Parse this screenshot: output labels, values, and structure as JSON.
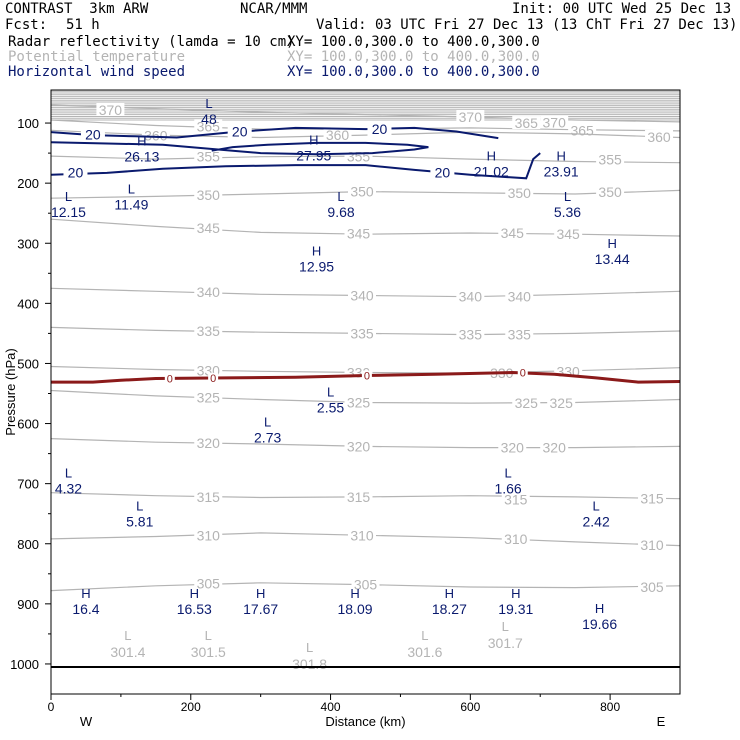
{
  "header": {
    "model": "CONTRAST  3km ARW",
    "center": "NCAR/MMM",
    "init": "Init: 00 UTC Wed 25 Dec 13",
    "fcst_label": "Fcst:",
    "fcst_value": "51 h",
    "valid": "Valid: 03 UTC Fri 27 Dec 13 (13 ChT Fri 27 Dec 13)"
  },
  "fields": [
    {
      "name": "Radar reflectivity (lamda = 10 cm)",
      "xy": "XY= 100.0,300.0 to 400.0,300.0",
      "color": "#000000"
    },
    {
      "name": "Potential temperature",
      "xy": "XY= 100.0,300.0 to 400.0,300.0",
      "color": "#b4b4b4"
    },
    {
      "name": "Horizontal wind speed",
      "xy": "XY= 100.0,300.0 to 400.0,300.0",
      "color": "#0a1a6e"
    }
  ],
  "chart_data": {
    "type": "cross-section",
    "xlabel": "Distance (km)",
    "ylabel": "Pressure (hPa)",
    "xlim": [
      0,
      900
    ],
    "ylim": [
      1050,
      45
    ],
    "x_ticks": [
      "0",
      "200",
      "400",
      "600",
      "800"
    ],
    "y_ticks": [
      "100",
      "200",
      "300",
      "400",
      "500",
      "600",
      "700",
      "800",
      "900",
      "1000"
    ],
    "left_end": "W",
    "right_end": "E",
    "colors": {
      "theta": "#b4b4b4",
      "wind": "#0a1a6e",
      "zero_line": "#8b1a1a",
      "axes": "#000000"
    },
    "theta_isentropes": [
      {
        "label": "370",
        "points": [
          [
            0,
            70
          ],
          [
            150,
            76
          ],
          [
            300,
            82
          ],
          [
            450,
            86
          ],
          [
            600,
            90
          ],
          [
            750,
            95
          ],
          [
            900,
            98
          ]
        ],
        "labels_at": [
          [
            85,
            78
          ],
          [
            600,
            90
          ],
          [
            720,
            99
          ]
        ]
      },
      {
        "label": "365",
        "points": [
          [
            0,
            95
          ],
          [
            150,
            104
          ],
          [
            300,
            110
          ],
          [
            450,
            110
          ],
          [
            600,
            108
          ],
          [
            750,
            111
          ],
          [
            900,
            113
          ]
        ],
        "labels_at": [
          [
            225,
            106
          ],
          [
            680,
            100
          ],
          [
            760,
            112
          ]
        ]
      },
      {
        "label": "360",
        "points": [
          [
            0,
            112
          ],
          [
            150,
            120
          ],
          [
            300,
            124
          ],
          [
            450,
            120
          ],
          [
            600,
            115
          ],
          [
            750,
            118
          ],
          [
            900,
            124
          ]
        ],
        "labels_at": [
          [
            150,
            121
          ],
          [
            410,
            120
          ],
          [
            870,
            123
          ]
        ]
      },
      {
        "label": "355",
        "points": [
          [
            0,
            155
          ],
          [
            150,
            160
          ],
          [
            300,
            156
          ],
          [
            450,
            155
          ],
          [
            600,
            160
          ],
          [
            750,
            164
          ],
          [
            900,
            166
          ]
        ],
        "labels_at": [
          [
            225,
            156
          ],
          [
            440,
            156
          ],
          [
            800,
            161
          ]
        ]
      },
      {
        "label": "350",
        "points": [
          [
            0,
            225
          ],
          [
            150,
            222
          ],
          [
            300,
            218
          ],
          [
            450,
            214
          ],
          [
            600,
            216
          ],
          [
            750,
            218
          ],
          [
            900,
            212
          ]
        ],
        "labels_at": [
          [
            225,
            220
          ],
          [
            445,
            214
          ],
          [
            670,
            216
          ],
          [
            800,
            215
          ]
        ]
      },
      {
        "label": "345",
        "points": [
          [
            0,
            260
          ],
          [
            150,
            272
          ],
          [
            300,
            282
          ],
          [
            450,
            285
          ],
          [
            600,
            283
          ],
          [
            750,
            285
          ],
          [
            900,
            288
          ]
        ],
        "labels_at": [
          [
            225,
            275
          ],
          [
            440,
            284
          ],
          [
            660,
            283
          ],
          [
            740,
            285
          ]
        ]
      },
      {
        "label": "340",
        "points": [
          [
            0,
            375
          ],
          [
            150,
            380
          ],
          [
            300,
            385
          ],
          [
            450,
            387
          ],
          [
            600,
            389
          ],
          [
            750,
            385
          ],
          [
            900,
            380
          ]
        ],
        "labels_at": [
          [
            225,
            381
          ],
          [
            445,
            387
          ],
          [
            600,
            389
          ],
          [
            670,
            389
          ]
        ]
      },
      {
        "label": "335",
        "points": [
          [
            0,
            440
          ],
          [
            150,
            445
          ],
          [
            300,
            448
          ],
          [
            450,
            450
          ],
          [
            600,
            452
          ],
          [
            750,
            450
          ],
          [
            900,
            446
          ]
        ],
        "labels_at": [
          [
            225,
            446
          ],
          [
            445,
            450
          ],
          [
            600,
            452
          ],
          [
            670,
            452
          ]
        ]
      },
      {
        "label": "330",
        "points": [
          [
            0,
            505
          ],
          [
            150,
            510
          ],
          [
            300,
            513
          ],
          [
            450,
            515
          ],
          [
            600,
            516
          ],
          [
            750,
            512
          ],
          [
            900,
            507
          ]
        ],
        "labels_at": [
          [
            225,
            512
          ],
          [
            440,
            515
          ],
          [
            645,
            516
          ],
          [
            740,
            513
          ]
        ]
      },
      {
        "label": "325",
        "points": [
          [
            0,
            545
          ],
          [
            150,
            554
          ],
          [
            300,
            560
          ],
          [
            450,
            565
          ],
          [
            600,
            566
          ],
          [
            750,
            565
          ],
          [
            900,
            560
          ]
        ],
        "labels_at": [
          [
            225,
            557
          ],
          [
            440,
            565
          ],
          [
            680,
            566
          ],
          [
            730,
            566
          ]
        ]
      },
      {
        "label": "320",
        "points": [
          [
            0,
            625
          ],
          [
            150,
            631
          ],
          [
            300,
            634
          ],
          [
            450,
            638
          ],
          [
            600,
            640
          ],
          [
            750,
            640
          ],
          [
            900,
            638
          ]
        ],
        "labels_at": [
          [
            225,
            632
          ],
          [
            440,
            638
          ],
          [
            660,
            640
          ],
          [
            720,
            640
          ]
        ]
      },
      {
        "label": "315",
        "points": [
          [
            0,
            715
          ],
          [
            150,
            720
          ],
          [
            300,
            723
          ],
          [
            450,
            722
          ],
          [
            600,
            720
          ],
          [
            750,
            722
          ],
          [
            900,
            725
          ]
        ],
        "labels_at": [
          [
            225,
            722
          ],
          [
            440,
            722
          ],
          [
            665,
            726
          ],
          [
            860,
            725
          ]
        ]
      },
      {
        "label": "310",
        "points": [
          [
            0,
            792
          ],
          [
            150,
            788
          ],
          [
            300,
            782
          ],
          [
            450,
            786
          ],
          [
            600,
            790
          ],
          [
            750,
            797
          ],
          [
            900,
            803
          ]
        ],
        "labels_at": [
          [
            225,
            786
          ],
          [
            445,
            786
          ],
          [
            665,
            792
          ],
          [
            860,
            802
          ]
        ]
      },
      {
        "label": "305",
        "points": [
          [
            0,
            878
          ],
          [
            150,
            870
          ],
          [
            300,
            865
          ],
          [
            450,
            868
          ],
          [
            600,
            872
          ],
          [
            750,
            873
          ],
          [
            900,
            870
          ]
        ],
        "labels_at": [
          [
            225,
            866
          ],
          [
            450,
            868
          ],
          [
            860,
            872
          ]
        ]
      }
    ],
    "theta_extrema": [
      {
        "type": "L",
        "value": "301.4",
        "x": 110,
        "p": 960
      },
      {
        "type": "L",
        "value": "301.5",
        "x": 225,
        "p": 960
      },
      {
        "type": "L",
        "value": "301.8",
        "x": 370,
        "p": 980
      },
      {
        "type": "L",
        "value": "301.6",
        "x": 535,
        "p": 960
      },
      {
        "type": "L",
        "value": "301.7",
        "x": 650,
        "p": 945
      }
    ],
    "wind_contours": [
      {
        "label": "20",
        "points": [
          [
            0,
            115
          ],
          [
            60,
            120
          ],
          [
            120,
            122
          ],
          [
            180,
            124
          ],
          [
            260,
            115
          ],
          [
            350,
            108
          ],
          [
            450,
            110
          ],
          [
            520,
            108
          ],
          [
            580,
            114
          ],
          [
            640,
            125
          ]
        ],
        "labels_at": [
          [
            60,
            119
          ],
          [
            270,
            114
          ],
          [
            470,
            110
          ]
        ]
      },
      {
        "label": "20",
        "points": [
          [
            0,
            132
          ],
          [
            80,
            134
          ],
          [
            160,
            136
          ],
          [
            260,
            146
          ],
          [
            300,
            150
          ],
          [
            380,
            152
          ],
          [
            460,
            150
          ],
          [
            520,
            144
          ],
          [
            540,
            140
          ],
          [
            510,
            136
          ],
          [
            450,
            133
          ],
          [
            380,
            133
          ],
          [
            310,
            136
          ],
          [
            260,
            140
          ],
          [
            230,
            146
          ]
        ],
        "labels_at": []
      },
      {
        "label": "20",
        "points": [
          [
            0,
            186
          ],
          [
            80,
            183
          ],
          [
            160,
            176
          ],
          [
            250,
            172
          ],
          [
            350,
            170
          ],
          [
            450,
            170
          ],
          [
            520,
            178
          ],
          [
            600,
            186
          ],
          [
            680,
            192
          ],
          [
            690,
            160
          ],
          [
            700,
            150
          ]
        ],
        "labels_at": [
          [
            35,
            182
          ],
          [
            560,
            182
          ]
        ]
      }
    ],
    "wind_extrema": [
      {
        "type": "L",
        "value": "48",
        "x": 226,
        "p": 75
      },
      {
        "type": "H",
        "value": "26.13",
        "x": 130,
        "p": 137
      },
      {
        "type": "H",
        "value": "27.95",
        "x": 376,
        "p": 136
      },
      {
        "type": "H",
        "value": "21.02",
        "x": 630,
        "p": 162
      },
      {
        "type": "H",
        "value": "23.91",
        "x": 730,
        "p": 162
      },
      {
        "type": "L",
        "value": "12.15",
        "x": 25,
        "p": 230
      },
      {
        "type": "L",
        "value": "11.49",
        "x": 115,
        "p": 217
      },
      {
        "type": "L",
        "value": "9.68",
        "x": 415,
        "p": 230
      },
      {
        "type": "L",
        "value": "5.36",
        "x": 739,
        "p": 230
      },
      {
        "type": "H",
        "value": "12.95",
        "x": 380,
        "p": 320
      },
      {
        "type": "H",
        "value": "13.44",
        "x": 803,
        "p": 308
      },
      {
        "type": "L",
        "value": "2.55",
        "x": 400,
        "p": 555
      },
      {
        "type": "L",
        "value": "2.73",
        "x": 310,
        "p": 605
      },
      {
        "type": "L",
        "value": "4.32",
        "x": 25,
        "p": 690
      },
      {
        "type": "L",
        "value": "1.66",
        "x": 654,
        "p": 690
      },
      {
        "type": "L",
        "value": "5.81",
        "x": 127,
        "p": 745
      },
      {
        "type": "L",
        "value": "2.42",
        "x": 780,
        "p": 745
      },
      {
        "type": "H",
        "value": "16.4",
        "x": 50,
        "p": 890
      },
      {
        "type": "H",
        "value": "16.53",
        "x": 205,
        "p": 890
      },
      {
        "type": "H",
        "value": "17.67",
        "x": 300,
        "p": 890
      },
      {
        "type": "H",
        "value": "18.09",
        "x": 435,
        "p": 890
      },
      {
        "type": "H",
        "value": "18.27",
        "x": 570,
        "p": 890
      },
      {
        "type": "H",
        "value": "19.31",
        "x": 665,
        "p": 890
      },
      {
        "type": "H",
        "value": "19.66",
        "x": 785,
        "p": 915
      }
    ],
    "zero_wind_line": {
      "label": "0",
      "points": [
        [
          0,
          531
        ],
        [
          60,
          531
        ],
        [
          100,
          528
        ],
        [
          150,
          525
        ],
        [
          250,
          524
        ],
        [
          350,
          523
        ],
        [
          450,
          520
        ],
        [
          550,
          518
        ],
        [
          660,
          515
        ],
        [
          720,
          518
        ],
        [
          780,
          524
        ],
        [
          840,
          531
        ],
        [
          900,
          530
        ]
      ],
      "labels_at": [
        [
          170,
          525
        ],
        [
          232,
          524
        ],
        [
          452,
          520
        ],
        [
          675,
          515
        ]
      ]
    },
    "ground_p": 1005
  }
}
